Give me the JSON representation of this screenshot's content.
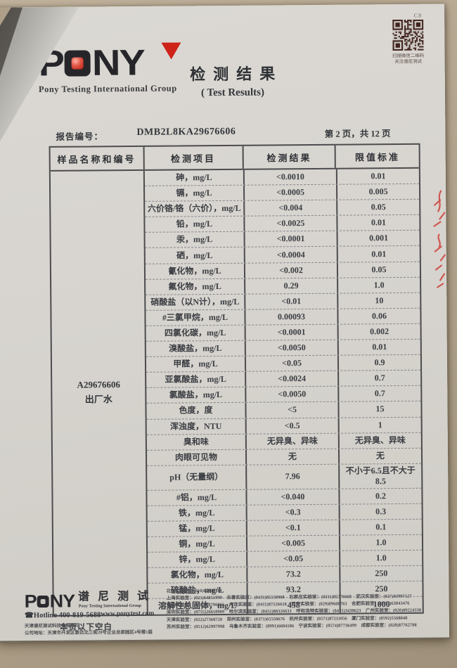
{
  "page": {
    "corner_mark": "C8",
    "qr_caption_line1": "扫描微信二维码",
    "qr_caption_line2": "关注谱尼测试"
  },
  "header": {
    "logo_letters": [
      "P",
      "N",
      "Y"
    ],
    "logo_subtitle": "Pony Testing International Group",
    "title_cn": "检测结果",
    "title_en": "( Test Results)",
    "brand_red": "#c9241a",
    "ink_color": "#2c2f33"
  },
  "report": {
    "report_no_label": "报告编号：",
    "report_no": "DMB2L8KA29676606",
    "page_indicator": "第 2 页，共 12 页"
  },
  "table": {
    "headers": [
      "样品名称和编号",
      "检测项目",
      "检测结果",
      "限值标准"
    ],
    "sample_id": "A29676606",
    "sample_name": "出厂水",
    "rows": [
      {
        "item": "砷，mg/L",
        "result": "<0.0010",
        "limit": "0.01"
      },
      {
        "item": "镉，mg/L",
        "result": "<0.0005",
        "limit": "0.005"
      },
      {
        "item": "六价铬/铬（六价），mg/L",
        "result": "<0.004",
        "limit": "0.05"
      },
      {
        "item": "铅，mg/L",
        "result": "<0.0025",
        "limit": "0.01"
      },
      {
        "item": "汞，mg/L",
        "result": "<0.0001",
        "limit": "0.001"
      },
      {
        "item": "硒，mg/L",
        "result": "<0.0004",
        "limit": "0.01"
      },
      {
        "item": "氰化物，mg/L",
        "result": "<0.002",
        "limit": "0.05"
      },
      {
        "item": "氟化物，mg/L",
        "result": "0.29",
        "limit": "1.0"
      },
      {
        "item": "硝酸盐（以N计），mg/L",
        "result": "<0.01",
        "limit": "10"
      },
      {
        "item": "#三氯甲烷，mg/L",
        "result": "0.00093",
        "limit": "0.06"
      },
      {
        "item": "四氯化碳，mg/L",
        "result": "<0.0001",
        "limit": "0.002"
      },
      {
        "item": "溴酸盐，mg/L",
        "result": "<0.0050",
        "limit": "0.01"
      },
      {
        "item": "甲醛，mg/L",
        "result": "<0.05",
        "limit": "0.9"
      },
      {
        "item": "亚氯酸盐，mg/L",
        "result": "<0.0024",
        "limit": "0.7"
      },
      {
        "item": "氯酸盐，mg/L",
        "result": "<0.0050",
        "limit": "0.7"
      },
      {
        "item": "色度，度",
        "result": "<5",
        "limit": "15"
      },
      {
        "item": "浑浊度，NTU",
        "result": "<0.5",
        "limit": "1"
      },
      {
        "item": "臭和味",
        "result": "无异臭、异味",
        "limit": "无异臭、异味"
      },
      {
        "item": "肉眼可见物",
        "result": "无",
        "limit": "无"
      },
      {
        "item": "pH（无量纲）",
        "result": "7.96",
        "limit": "不小于6.5且不大于8.5"
      },
      {
        "item": "#铝，mg/L",
        "result": "<0.040",
        "limit": "0.2"
      },
      {
        "item": "铁，mg/L",
        "result": "<0.3",
        "limit": "0.3"
      },
      {
        "item": "锰，mg/L",
        "result": "<0.1",
        "limit": "0.1"
      },
      {
        "item": "铜，mg/L",
        "result": "<0.005",
        "limit": "1.0"
      },
      {
        "item": "锌，mg/L",
        "result": "<0.05",
        "limit": "1.0"
      },
      {
        "item": "氯化物，mg/L",
        "result": "73.2",
        "limit": "250"
      },
      {
        "item": "硫酸盐，mg/L",
        "result": "93.2",
        "limit": "250"
      },
      {
        "item": "溶解性总固体，mg/L",
        "result": "458",
        "limit": "1000"
      }
    ]
  },
  "notes": {
    "end_of_page": "本页以下空白"
  },
  "footer": {
    "logo_letters": [
      "P",
      "N",
      "Y"
    ],
    "logo_cn": "谱 尼 测 试",
    "logo_subtitle": "Pony Testing International Group",
    "phone_icon": "☎",
    "hotline": "Hotline 400-819-5688",
    "website": "www.ponytest.com",
    "company_name": "天津谱尼测试科技有限公司",
    "company_address": "公司地址：天津市开发区泰达北三街20号企业总部园区4号楼1层",
    "lab_lines": [
      "北京实验室：(010)82618114",
      "上海实验室：(021)64851999　长春实验室：(0431)85150908　石家庄实验室：(0311)85376668　武汉实验室：(027)83997127",
      "青岛实验室：(0532)88796866　大连实验室：(0411)87226618　西安实验室：(029)89608763　合肥实验室：(0551)63843476",
      "深圳实验室：(0755)26650909　哈尔滨实验室：(0451)88326633　呼和浩特实验室：(0471)3430623　广州实验室：(020)89224338",
      "天津实验室：(022)27360720　郑州实验室：(0371)65550676　杭州实验室：(0571)87211056　厦门实验室：(0592)5568048",
      "苏州实验室：(0512)62997998　乌鲁木齐实验室：(0991)6684186　宁波实验室：(0574)87736499　成都实验室：(028)87762708"
    ]
  }
}
